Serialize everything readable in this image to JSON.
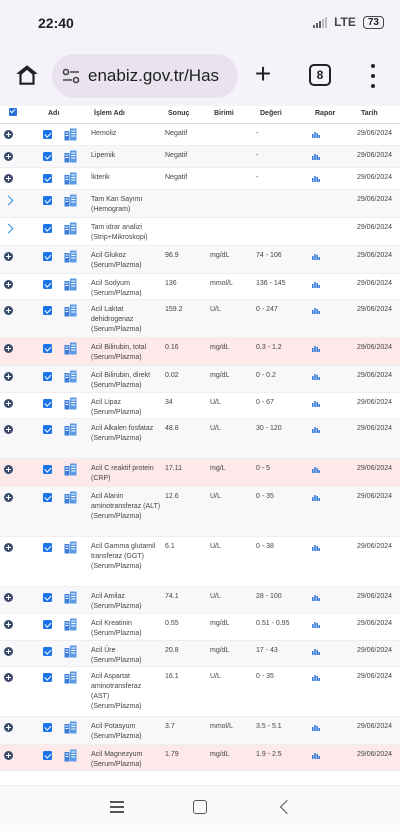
{
  "status": {
    "time": "22:40",
    "network": "LTE",
    "battery": "73"
  },
  "browser": {
    "url": "enabiz.gov.tr/Has",
    "tab_count": "8"
  },
  "table": {
    "headers": {
      "name": "Adı",
      "test": "İşlem Adı",
      "result": "Sonuç",
      "unit": "Birimi",
      "ref": "Değeri",
      "report": "Rapor",
      "date": "Tarih"
    },
    "rows": [
      {
        "expand": "plus",
        "name": "Hemoliz",
        "result": "Negatif",
        "unit": "",
        "ref": "-",
        "date": "29/06/2024",
        "report": true,
        "highlight": false
      },
      {
        "expand": "plus",
        "name": "Lipemik",
        "result": "Negatif",
        "unit": "",
        "ref": "-",
        "date": "29/06/2024",
        "report": true,
        "highlight": false
      },
      {
        "expand": "plus",
        "name": "İkterik",
        "result": "Negatif",
        "unit": "",
        "ref": "-",
        "date": "29/06/2024",
        "report": true,
        "highlight": false
      },
      {
        "expand": "chevron",
        "name": "Tam Kan Sayımı (Hemogram)",
        "result": "",
        "unit": "",
        "ref": "",
        "date": "29/06/2024",
        "report": false,
        "highlight": false
      },
      {
        "expand": "chevron",
        "name": "Tam idrar analizi (Strip+Mikroskopi)",
        "result": "",
        "unit": "",
        "ref": "",
        "date": "29/06/2024",
        "report": false,
        "highlight": false
      },
      {
        "expand": "plus",
        "name": "Acil Glukoz (Serum/Plazma)",
        "result": "96.9",
        "unit": "mg/dL",
        "ref": "74 - 106",
        "date": "29/06/2024",
        "report": true,
        "highlight": false
      },
      {
        "expand": "plus",
        "name": "Acil Sodyum (Serum/Plazma)",
        "result": "136",
        "unit": "mmol/L",
        "ref": "136 - 145",
        "date": "29/06/2024",
        "report": true,
        "highlight": false
      },
      {
        "expand": "plus",
        "name": "Acil Laktat dehidrogenaz (Serum/Plazma)",
        "result": "159.2",
        "unit": "U/L",
        "ref": "0 - 247",
        "date": "29/06/2024",
        "report": true,
        "highlight": false
      },
      {
        "expand": "plus",
        "name": "Acil Bilirubin, total (Serum/Plazma)",
        "result": "0.16",
        "unit": "mg/dL",
        "ref": "0.3 - 1.2",
        "date": "29/06/2024",
        "report": true,
        "highlight": true
      },
      {
        "expand": "plus",
        "name": "Acil Bilirubin, direkt (Serum/Plazma)",
        "result": "0.02",
        "unit": "mg/dL",
        "ref": "0 - 0.2",
        "date": "29/06/2024",
        "report": true,
        "highlight": false
      },
      {
        "expand": "plus",
        "name": "Acil Lipaz (Serum/Plazma)",
        "result": "34",
        "unit": "U/L",
        "ref": "0 - 67",
        "date": "29/06/2024",
        "report": true,
        "highlight": false
      },
      {
        "expand": "plus",
        "name": "Acil Alkalen fosfataz (Serum/Plazma)",
        "result": "48.8",
        "unit": "U/L",
        "ref": "30 - 120",
        "date": "29/06/2024",
        "report": true,
        "highlight": false
      },
      {
        "expand": "plus",
        "name": "Acil C reaktif protein (CRP)",
        "result": "17.11",
        "unit": "mg/L",
        "ref": "0 - 5",
        "date": "29/06/2024",
        "report": true,
        "highlight": true
      },
      {
        "expand": "plus",
        "name": "Acil Alanin aminotransferaz (ALT) (Serum/Plazma)",
        "result": "12.6",
        "unit": "U/L",
        "ref": "0 - 35",
        "date": "29/06/2024",
        "report": true,
        "highlight": false
      },
      {
        "expand": "plus",
        "name": "Acil Gamma glutamil transferaz (GGT) (Serum/Plazma)",
        "result": "6.1",
        "unit": "U/L",
        "ref": "0 - 38",
        "date": "29/06/2024",
        "report": true,
        "highlight": false
      },
      {
        "expand": "plus",
        "name": "Acil Amilaz (Serum/Plazma)",
        "result": "74.1",
        "unit": "U/L",
        "ref": "28 - 100",
        "date": "29/06/2024",
        "report": true,
        "highlight": false
      },
      {
        "expand": "plus",
        "name": "Acil Kreatinin (Serum/Plazma)",
        "result": "0.55",
        "unit": "mg/dL",
        "ref": "0.51 - 0.95",
        "date": "29/06/2024",
        "report": true,
        "highlight": false
      },
      {
        "expand": "plus",
        "name": "Acil Üre (Serum/Plazma)",
        "result": "20.8",
        "unit": "mg/dL",
        "ref": "17 - 43",
        "date": "29/06/2024",
        "report": true,
        "highlight": false
      },
      {
        "expand": "plus",
        "name": "Acil Aspartat aminotransferaz (AST) (Serum/Plazma)",
        "result": "16.1",
        "unit": "U/L",
        "ref": "0 - 35",
        "date": "29/06/2024",
        "report": true,
        "highlight": false
      },
      {
        "expand": "plus",
        "name": "Acil Potasyum (Serum/Plazma)",
        "result": "3.7",
        "unit": "mmol/L",
        "ref": "3.5 - 5.1",
        "date": "29/06/2024",
        "report": true,
        "highlight": false
      },
      {
        "expand": "plus",
        "name": "Acil Magnezyum (Serum/Plazma)",
        "result": "1.79",
        "unit": "mg/dL",
        "ref": "1.9 - 2.5",
        "date": "29/06/2024",
        "report": true,
        "highlight": true
      }
    ]
  }
}
